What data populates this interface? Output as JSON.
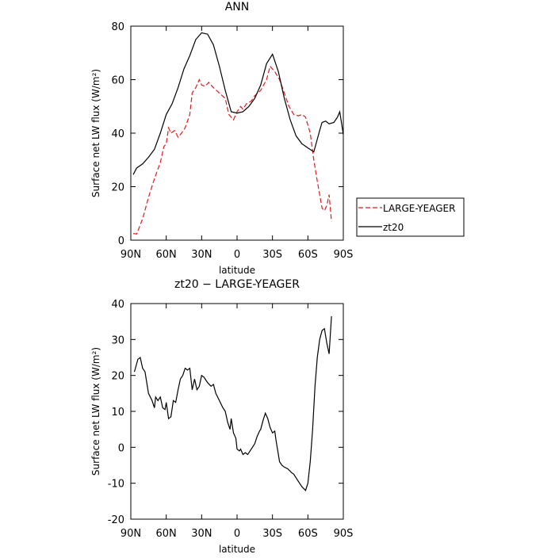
{
  "chart_data": [
    {
      "type": "line",
      "title": "ANN",
      "xlabel": "latitude",
      "ylabel": "Surface net LW flux (W/m²)",
      "xlim": [
        90,
        -90
      ],
      "ylim": [
        0,
        80
      ],
      "xticks": [
        {
          "value": 90,
          "label": "90N"
        },
        {
          "value": 60,
          "label": "60N"
        },
        {
          "value": 30,
          "label": "30N"
        },
        0,
        {
          "value": -30,
          "label": "30S"
        },
        {
          "value": -60,
          "label": "60S"
        },
        {
          "value": -90,
          "label": "90S"
        }
      ],
      "yticks": [
        0,
        20,
        40,
        60,
        80
      ],
      "legend": "right",
      "series": [
        {
          "name": "LARGE-YEAGER",
          "color": "#e41a1c",
          "dash": true,
          "x": [
            88,
            85,
            80,
            75,
            70,
            65,
            62,
            60,
            58,
            56,
            53,
            50,
            47,
            44,
            40,
            38,
            35,
            32,
            30,
            27,
            24,
            20,
            15,
            10,
            7,
            3,
            0,
            -3,
            -5,
            -8,
            -12,
            -15,
            -20,
            -25,
            -28,
            -32,
            -36,
            -40,
            -44,
            -48,
            -52,
            -55,
            -58,
            -62,
            -65,
            -68,
            -70,
            -72,
            -74,
            -76,
            -78,
            -79,
            -80
          ],
          "values": [
            2.5,
            2.3,
            8,
            16,
            23,
            29,
            35,
            36,
            42,
            40,
            41,
            38.5,
            40,
            42,
            47,
            55,
            57,
            60,
            58,
            57.5,
            59,
            57,
            55,
            53,
            47,
            45,
            48,
            50,
            49,
            51,
            52,
            54,
            56,
            60,
            65,
            63,
            60,
            55,
            50,
            47,
            46.5,
            47,
            46,
            40,
            30,
            22,
            17,
            12,
            11,
            13,
            17,
            12,
            7
          ]
        },
        {
          "name": "zt20",
          "color": "#000000",
          "dash": false,
          "x": [
            88,
            85,
            80,
            75,
            70,
            65,
            60,
            55,
            50,
            45,
            40,
            35,
            30,
            25,
            20,
            15,
            10,
            5,
            0,
            -5,
            -10,
            -15,
            -20,
            -25,
            -30,
            -35,
            -40,
            -45,
            -50,
            -55,
            -60,
            -65,
            -70,
            -72,
            -75,
            -78,
            -82,
            -85,
            -87,
            -90
          ],
          "values": [
            24.5,
            27,
            28.5,
            31,
            34,
            40,
            47,
            51,
            57,
            64,
            69,
            75,
            77.5,
            77,
            73,
            65,
            56,
            48,
            47.5,
            48,
            50,
            53,
            58,
            66,
            69.5,
            63,
            53,
            45,
            39,
            36,
            34.5,
            33,
            41,
            44,
            44.5,
            43.5,
            44,
            46,
            48,
            39.5
          ]
        }
      ]
    },
    {
      "type": "line",
      "title": "zt20 − LARGE-YEAGER",
      "xlabel": "latitude",
      "ylabel": "Surface net LW flux (W/m²)",
      "xlim": [
        90,
        -90
      ],
      "ylim": [
        -20,
        40
      ],
      "xticks": [
        {
          "value": 90,
          "label": "90N"
        },
        {
          "value": 60,
          "label": "60N"
        },
        {
          "value": 30,
          "label": "30N"
        },
        0,
        {
          "value": -30,
          "label": "30S"
        },
        {
          "value": -60,
          "label": "60S"
        },
        {
          "value": -90,
          "label": "90S"
        }
      ],
      "yticks": [
        -20,
        -10,
        0,
        10,
        20,
        30,
        40
      ],
      "series": [
        {
          "color": "#000000",
          "dash": false,
          "x": [
            87,
            84,
            82,
            80,
            78,
            75,
            72,
            70,
            69,
            67,
            65,
            63,
            61,
            60,
            58,
            56,
            54,
            52,
            50,
            48,
            46,
            44,
            42,
            40,
            38,
            36,
            34,
            32,
            30,
            28,
            25,
            22,
            20,
            18,
            15,
            12,
            10,
            8,
            6,
            5,
            3,
            1,
            0,
            -2,
            -3,
            -5,
            -7,
            -9,
            -11,
            -13,
            -15,
            -17,
            -19,
            -20,
            -22,
            -24,
            -26,
            -28,
            -30,
            -32,
            -33,
            -35,
            -36,
            -38,
            -40,
            -43,
            -46,
            -48,
            -52,
            -55,
            -58,
            -60,
            -62,
            -64,
            -66,
            -68,
            -70,
            -72,
            -74,
            -76,
            -78,
            -80
          ],
          "values": [
            21,
            24.5,
            25,
            22,
            21,
            15,
            13,
            11,
            14,
            13,
            14,
            11,
            10.5,
            12.5,
            8,
            8.5,
            13,
            12.5,
            16,
            19,
            20,
            22,
            21.5,
            22,
            16,
            19,
            16,
            17,
            20,
            19.5,
            18,
            17,
            17.5,
            15,
            13,
            11,
            10,
            7,
            5,
            8,
            4,
            2.5,
            -0.5,
            -1,
            -0.5,
            -2,
            -1.5,
            -2,
            -1,
            0,
            1,
            3,
            4.5,
            5,
            7.5,
            9.5,
            8,
            5.5,
            4,
            4.5,
            2,
            -2,
            -4,
            -5,
            -5.5,
            -6,
            -7,
            -7.5,
            -9.5,
            -11,
            -12,
            -10,
            -4,
            5,
            17,
            25,
            30,
            32.5,
            33,
            29,
            26,
            36.5
          ]
        }
      ]
    }
  ]
}
